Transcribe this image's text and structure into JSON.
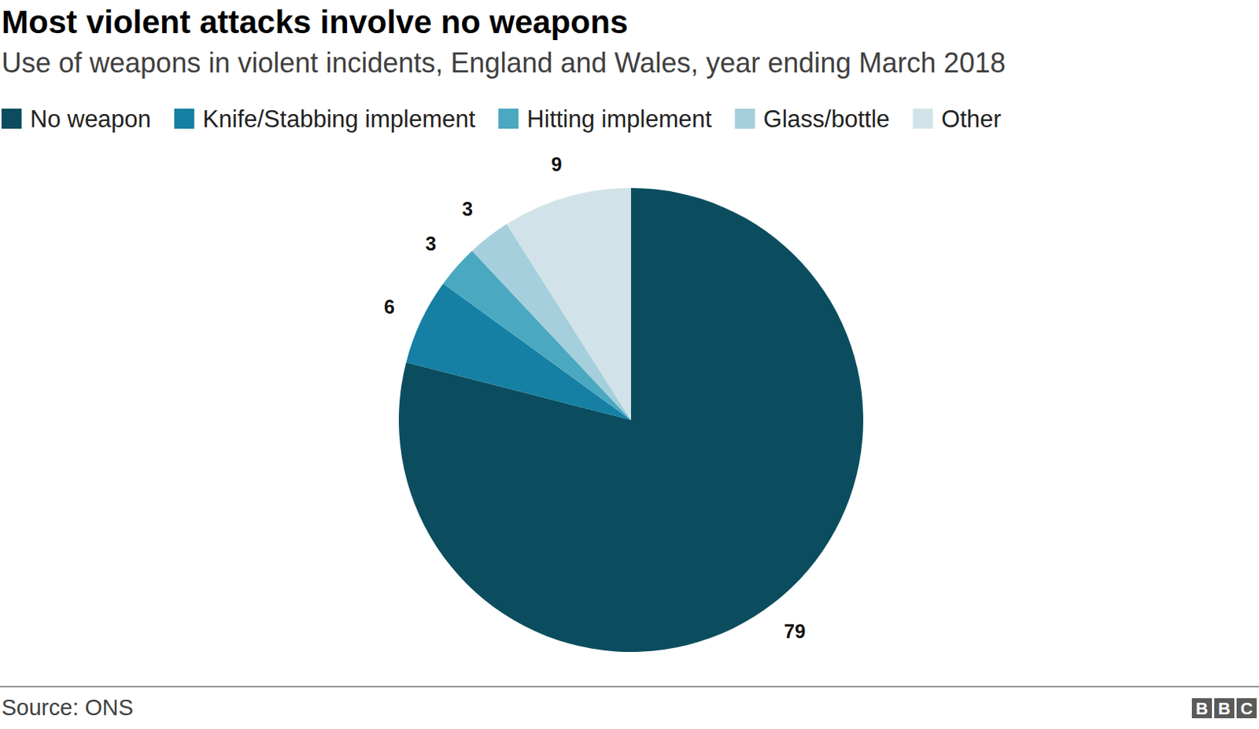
{
  "chart_data": {
    "type": "pie",
    "title": "Most violent attacks involve no weapons",
    "subtitle": "Use of weapons in violent incidents, England and Wales, year ending March 2018",
    "categories": [
      "No weapon",
      "Knife/Stabbing implement",
      "Hitting implement",
      "Glass/bottle",
      "Other"
    ],
    "values": [
      79,
      6,
      3,
      3,
      9
    ],
    "colors": [
      "#0b4d5f",
      "#1580a3",
      "#4aa8c0",
      "#a5cfdc",
      "#d1e3e8"
    ],
    "data_labels": true,
    "legend": "top",
    "source": "Source: ONS",
    "logo": "BBC"
  }
}
